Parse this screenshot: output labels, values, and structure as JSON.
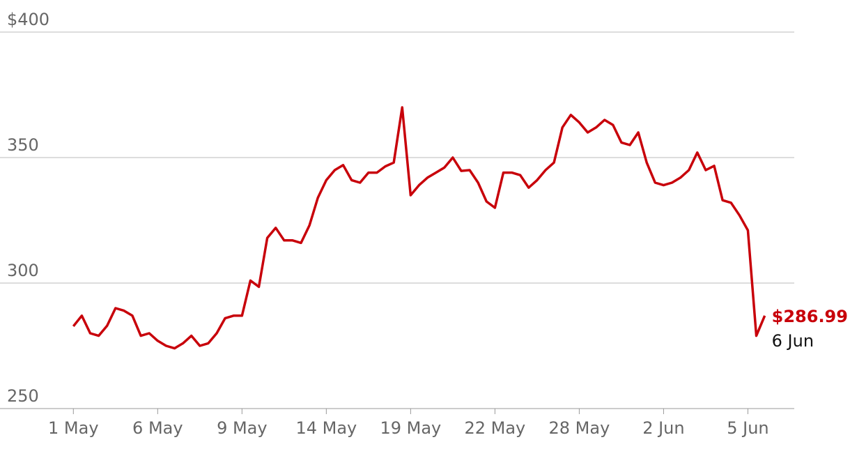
{
  "chart_data": {
    "type": "line",
    "series": [
      {
        "color": "#c8000a",
        "values": [
          282.8,
          287,
          280,
          279,
          283,
          290,
          289,
          287,
          279,
          280,
          277,
          275,
          274,
          276,
          279,
          275,
          276,
          280,
          286,
          287,
          287,
          301,
          298.5,
          318,
          322,
          317,
          317,
          316,
          323,
          334,
          341,
          345,
          347,
          341,
          340,
          344,
          344,
          346.5,
          348,
          370,
          335,
          339,
          342,
          344,
          346,
          350,
          344.7,
          345,
          340,
          332.5,
          330,
          344,
          344,
          343,
          338,
          341,
          345,
          348,
          362,
          367,
          364,
          360,
          362,
          365,
          363,
          356,
          355,
          360,
          348,
          340,
          339,
          340,
          342,
          345,
          352,
          345,
          346.7,
          333,
          332,
          327,
          321,
          279,
          286.99
        ],
        "value_labels": [
          null,
          null,
          null,
          null,
          null,
          null,
          null,
          null,
          null,
          null,
          null,
          null,
          null,
          null,
          null,
          null,
          null,
          null,
          null,
          null,
          null,
          null,
          null,
          null,
          null,
          null,
          null,
          null,
          null,
          null,
          null,
          null,
          null,
          null,
          null,
          null,
          null,
          null,
          null,
          null,
          null,
          null,
          null,
          null,
          null,
          null,
          null,
          null,
          null,
          null,
          null,
          null,
          null,
          null,
          null,
          null,
          null,
          null,
          null,
          null,
          null,
          null,
          null,
          null,
          null,
          null,
          null,
          null,
          null,
          null,
          null,
          null,
          null,
          null,
          null,
          null,
          null,
          null,
          null,
          null,
          null,
          null,
          "$286.99"
        ]
      }
    ],
    "last_date": "6 Jun",
    "xlim": [
      -8.7,
      85.5
    ],
    "xticks": [
      {
        "value": 0,
        "label": "1 May"
      },
      {
        "value": 10,
        "label": "6 May"
      },
      {
        "value": 20,
        "label": "9 May"
      },
      {
        "value": 30,
        "label": "14 May"
      },
      {
        "value": 40,
        "label": "19 May"
      },
      {
        "value": 50,
        "label": "22 May"
      },
      {
        "value": 60,
        "label": "28 May"
      },
      {
        "value": 70,
        "label": "2 Jun"
      },
      {
        "value": 80,
        "label": "5 Jun"
      }
    ],
    "ylim": [
      250,
      400
    ],
    "yticks": [
      250,
      300,
      350,
      {
        "value": 400,
        "label": "$400"
      }
    ],
    "grid": true
  }
}
